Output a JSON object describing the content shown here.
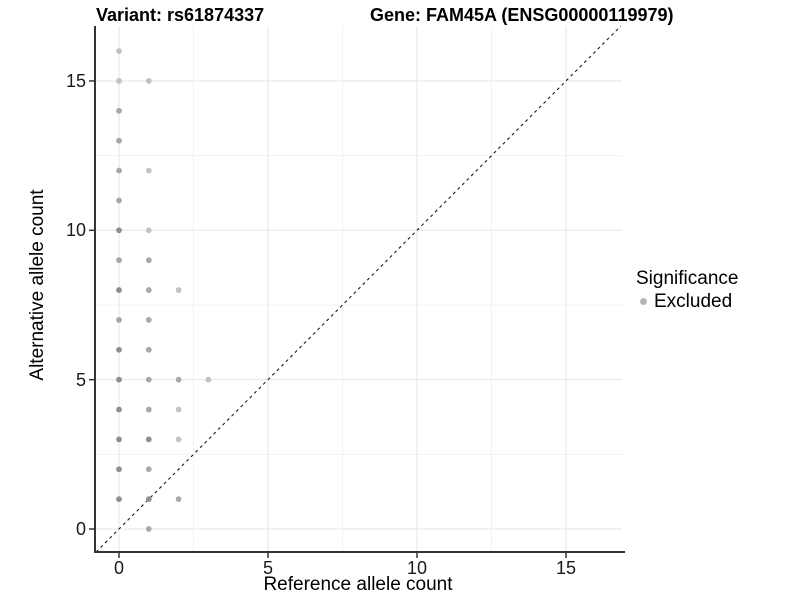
{
  "chart_data": {
    "type": "scatter",
    "variant_title": "Variant: rs61874337",
    "gene_title": "Gene: FAM45A (ENSG00000119979)",
    "xlabel": "Reference allele count",
    "ylabel": "Alternative allele count",
    "xlim": [
      -0.8,
      16.9
    ],
    "ylim": [
      -0.8,
      16.85
    ],
    "x_major_ticks": [
      0,
      5,
      10,
      15
    ],
    "y_major_ticks": [
      0,
      5,
      10,
      15
    ],
    "x_minor_gridlines": [
      2.5,
      7.5,
      12.5
    ],
    "y_minor_gridlines": [
      2.5,
      7.5,
      12.5
    ],
    "grid": "major+minor",
    "identity_line": {
      "style": "dashed",
      "slope": 1,
      "intercept": 0,
      "comment": "y = x reference line"
    },
    "legend": {
      "title": "Significance",
      "position": "right",
      "entries": [
        {
          "label": "Excluded",
          "color": "#b5b5b5"
        }
      ]
    },
    "point_shades": {
      "light": "#c3c3c3",
      "medium": "#a8a8a8",
      "dark": "#8f8f8f"
    },
    "series": [
      {
        "name": "Excluded",
        "points": [
          [
            0,
            1,
            "dark"
          ],
          [
            0,
            2,
            "dark"
          ],
          [
            0,
            3,
            "dark"
          ],
          [
            0,
            4,
            "dark"
          ],
          [
            0,
            5,
            "dark"
          ],
          [
            0,
            6,
            "dark"
          ],
          [
            0,
            7,
            "medium"
          ],
          [
            0,
            8,
            "dark"
          ],
          [
            0,
            9,
            "medium"
          ],
          [
            0,
            10,
            "dark"
          ],
          [
            0,
            11,
            "medium"
          ],
          [
            0,
            12,
            "medium"
          ],
          [
            0,
            13,
            "medium"
          ],
          [
            0,
            14,
            "medium"
          ],
          [
            0,
            15,
            "light"
          ],
          [
            0,
            16,
            "light"
          ],
          [
            1,
            0,
            "medium"
          ],
          [
            1,
            1,
            "dark"
          ],
          [
            1,
            2,
            "medium"
          ],
          [
            1,
            3,
            "dark"
          ],
          [
            1,
            4,
            "medium"
          ],
          [
            1,
            5,
            "medium"
          ],
          [
            1,
            6,
            "medium"
          ],
          [
            1,
            7,
            "medium"
          ],
          [
            1,
            8,
            "medium"
          ],
          [
            1,
            9,
            "medium"
          ],
          [
            1,
            10,
            "light"
          ],
          [
            1,
            12,
            "light"
          ],
          [
            1,
            15,
            "light"
          ],
          [
            2,
            1,
            "medium"
          ],
          [
            2,
            3,
            "light"
          ],
          [
            2,
            4,
            "light"
          ],
          [
            2,
            5,
            "medium"
          ],
          [
            2,
            8,
            "light"
          ],
          [
            3,
            5,
            "light"
          ]
        ]
      }
    ],
    "style": {
      "background": "#ffffff",
      "grid_major": "#e6e6e6",
      "grid_minor": "#f1f1f1",
      "axis_line": "#333333",
      "tick_mark": "#333333",
      "dashed_line": "#1a1a1a",
      "text": "#000000"
    }
  }
}
